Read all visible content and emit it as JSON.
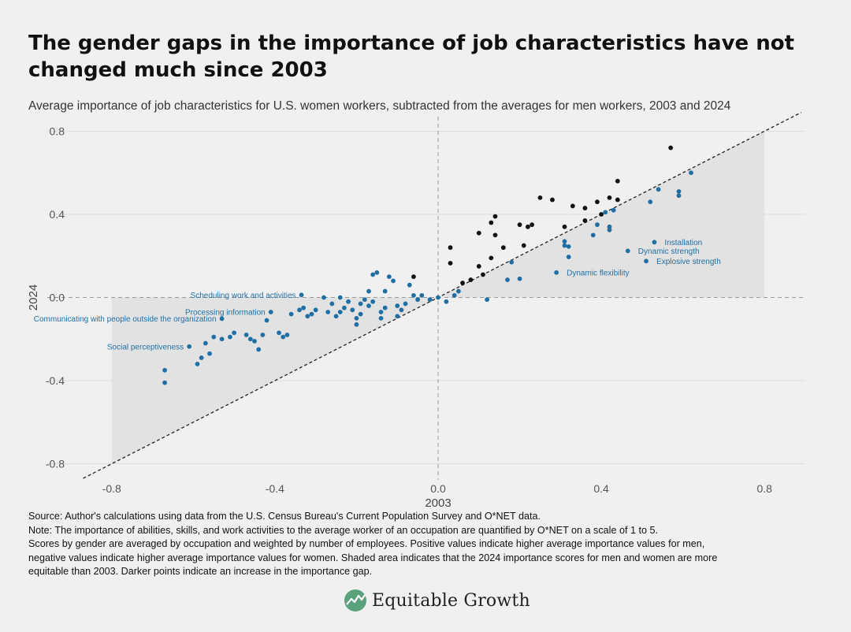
{
  "title": "The gender gaps in the importance of job characteristics have not changed much since 2003",
  "subtitle": "Average importance of job characteristics for U.S. women workers, subtracted from the averages for men workers, 2003 and 2024",
  "notes": {
    "source": "Source: Author's calculations using data from the U.S. Census Bureau's Current Population Survey and O*NET data.",
    "note_lines": [
      "Note: The importance of abilities, skills, and work activities to the average worker of an occupation are quantified by O*NET on a scale of 1 to 5.",
      "Scores by gender are averaged by occupation and weighted by number of employees. Positive values indicate higher average importance values for men,",
      "negative values indicate higher average importance values for women. Shaded area indicates that the 2024 importance scores for men and women are more",
      "equitable than 2003. Darker points indicate an increase in the importance gap."
    ]
  },
  "brand": {
    "name": "Equitable Growth",
    "icon": "equitable-growth-logo-icon"
  },
  "colors": {
    "background": "#f0f0f0",
    "shade": "#e2e2e2",
    "blue": "#1f6fa5",
    "dark": "#111111",
    "grid": "#dcdcdc",
    "logo_green": "#5aa27c"
  },
  "chart_data": {
    "type": "scatter",
    "xlabel": "2003",
    "ylabel": "2024",
    "xlim": [
      -0.9,
      0.9
    ],
    "ylim": [
      -0.87,
      0.87
    ],
    "xticks": [
      -0.8,
      -0.4,
      0.0,
      0.4,
      0.8
    ],
    "xtick_labels": [
      "-0.8",
      "-0.4",
      "0.0",
      "0.4",
      "0.8"
    ],
    "yticks": [
      -0.8,
      -0.4,
      0.0,
      0.4,
      0.8
    ],
    "ytick_labels": [
      "-0.8",
      "-0.4",
      "0.0",
      "0.4",
      "0.8"
    ],
    "grid": "horizontal",
    "reference_line": "y = x (dashed)",
    "shaded_region": "area between y = x and y = 0, from x = -0.8 to x = 0.8",
    "annotations": [
      {
        "text": "Installation",
        "x": 0.53,
        "y": 0.266
      },
      {
        "text": "Dynamic strength",
        "x": 0.465,
        "y": 0.224
      },
      {
        "text": "Explosive strength",
        "x": 0.51,
        "y": 0.175
      },
      {
        "text": "Dynamic flexibility",
        "x": 0.29,
        "y": 0.12
      },
      {
        "text": "Scheduling work and activities",
        "x": -0.335,
        "y": 0.012
      },
      {
        "text": "Processing information",
        "x": -0.41,
        "y": -0.07
      },
      {
        "text": "Communicating with people outside the organization",
        "x": -0.53,
        "y": -0.102
      },
      {
        "text": "Social perceptiveness",
        "x": -0.61,
        "y": -0.236
      }
    ],
    "series": [
      {
        "name": "",
        "style": "dark",
        "points": [
          [
            0.57,
            0.72
          ],
          [
            0.44,
            0.56
          ],
          [
            0.25,
            0.48
          ],
          [
            0.28,
            0.47
          ],
          [
            0.22,
            0.34
          ],
          [
            0.23,
            0.35
          ],
          [
            0.33,
            0.44
          ],
          [
            0.36,
            0.43
          ],
          [
            0.39,
            0.46
          ],
          [
            0.42,
            0.48
          ],
          [
            0.44,
            0.47
          ],
          [
            0.31,
            0.34
          ],
          [
            0.36,
            0.37
          ],
          [
            0.4,
            0.4
          ],
          [
            0.14,
            0.39
          ],
          [
            0.13,
            0.36
          ],
          [
            0.2,
            0.35
          ],
          [
            0.1,
            0.31
          ],
          [
            0.14,
            0.3
          ],
          [
            0.03,
            0.24
          ],
          [
            0.21,
            0.25
          ],
          [
            0.16,
            0.24
          ],
          [
            0.13,
            0.19
          ],
          [
            0.1,
            0.15
          ],
          [
            0.03,
            0.165
          ],
          [
            0.11,
            0.11
          ],
          [
            0.08,
            0.085
          ],
          [
            0.06,
            0.07
          ],
          [
            -0.06,
            0.1
          ]
        ]
      },
      {
        "name": "",
        "style": "blue",
        "points": [
          [
            0.62,
            0.6
          ],
          [
            0.54,
            0.52
          ],
          [
            0.59,
            0.51
          ],
          [
            0.59,
            0.49
          ],
          [
            0.52,
            0.46
          ],
          [
            0.43,
            0.42
          ],
          [
            0.41,
            0.41
          ],
          [
            0.42,
            0.34
          ],
          [
            0.42,
            0.325
          ],
          [
            0.39,
            0.35
          ],
          [
            0.38,
            0.3
          ],
          [
            0.53,
            0.266
          ],
          [
            0.31,
            0.27
          ],
          [
            0.31,
            0.25
          ],
          [
            0.32,
            0.245
          ],
          [
            0.465,
            0.224
          ],
          [
            0.32,
            0.195
          ],
          [
            0.51,
            0.175
          ],
          [
            0.18,
            0.17
          ],
          [
            0.2,
            0.09
          ],
          [
            0.17,
            0.085
          ],
          [
            0.29,
            0.12
          ],
          [
            0.12,
            -0.01
          ],
          [
            0.05,
            0.03
          ],
          [
            0.04,
            0.01
          ],
          [
            0.02,
            -0.02
          ],
          [
            0.0,
            0.0
          ],
          [
            -0.02,
            -0.01
          ],
          [
            -0.04,
            0.01
          ],
          [
            -0.05,
            -0.01
          ],
          [
            -0.07,
            0.06
          ],
          [
            -0.06,
            0.01
          ],
          [
            -0.08,
            -0.03
          ],
          [
            -0.09,
            -0.06
          ],
          [
            -0.1,
            -0.04
          ],
          [
            -0.1,
            -0.09
          ],
          [
            -0.11,
            0.08
          ],
          [
            -0.12,
            0.1
          ],
          [
            -0.13,
            0.03
          ],
          [
            -0.13,
            -0.05
          ],
          [
            -0.14,
            -0.07
          ],
          [
            -0.14,
            -0.1
          ],
          [
            -0.15,
            0.12
          ],
          [
            -0.16,
            0.11
          ],
          [
            -0.16,
            -0.02
          ],
          [
            -0.17,
            -0.04
          ],
          [
            -0.17,
            0.03
          ],
          [
            -0.18,
            -0.01
          ],
          [
            -0.19,
            -0.03
          ],
          [
            -0.19,
            -0.08
          ],
          [
            -0.2,
            -0.1
          ],
          [
            -0.2,
            -0.13
          ],
          [
            -0.21,
            -0.06
          ],
          [
            -0.22,
            -0.02
          ],
          [
            -0.23,
            -0.05
          ],
          [
            -0.24,
            0.0
          ],
          [
            -0.24,
            -0.07
          ],
          [
            -0.25,
            -0.09
          ],
          [
            -0.26,
            -0.03
          ],
          [
            -0.27,
            -0.07
          ],
          [
            -0.28,
            0.0
          ],
          [
            -0.3,
            -0.06
          ],
          [
            -0.31,
            -0.08
          ],
          [
            -0.32,
            -0.09
          ],
          [
            -0.34,
            -0.06
          ],
          [
            -0.36,
            -0.08
          ],
          [
            -0.37,
            -0.18
          ],
          [
            -0.38,
            -0.19
          ],
          [
            -0.39,
            -0.17
          ],
          [
            -0.41,
            -0.07
          ],
          [
            -0.42,
            -0.11
          ],
          [
            -0.43,
            -0.18
          ],
          [
            -0.45,
            -0.21
          ],
          [
            -0.46,
            -0.2
          ],
          [
            -0.47,
            -0.18
          ],
          [
            -0.5,
            -0.17
          ],
          [
            -0.51,
            -0.19
          ],
          [
            -0.53,
            -0.2
          ],
          [
            -0.55,
            -0.19
          ],
          [
            -0.56,
            -0.27
          ],
          [
            -0.57,
            -0.22
          ],
          [
            -0.58,
            -0.29
          ],
          [
            -0.59,
            -0.32
          ],
          [
            -0.335,
            0.012
          ],
          [
            -0.53,
            -0.102
          ],
          [
            -0.61,
            -0.236
          ],
          [
            -0.67,
            -0.35
          ],
          [
            -0.67,
            -0.41
          ],
          [
            -0.44,
            -0.25
          ],
          [
            -0.33,
            -0.05
          ]
        ]
      }
    ]
  }
}
